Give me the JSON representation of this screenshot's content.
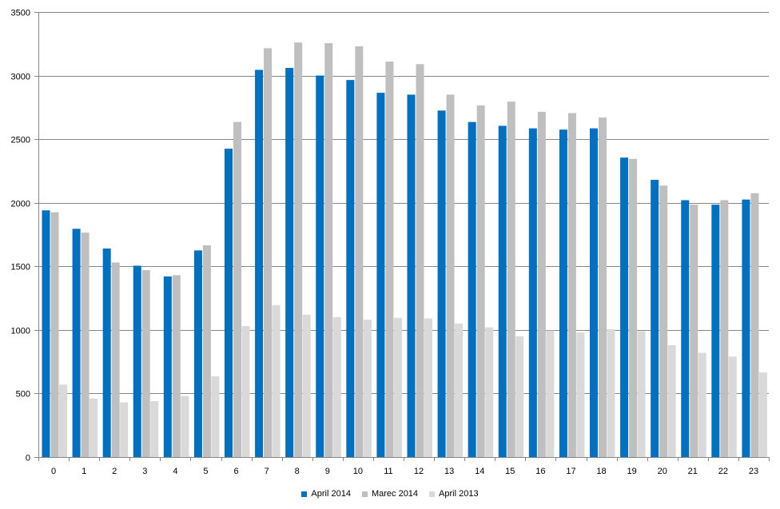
{
  "chart_data": {
    "type": "bar",
    "title": "",
    "xlabel": "",
    "ylabel": "",
    "ylim": [
      0,
      3500
    ],
    "yticks": [
      0,
      500,
      1000,
      1500,
      2000,
      2500,
      3000,
      3500
    ],
    "grid": true,
    "legend_position": "bottom",
    "categories": [
      "0",
      "1",
      "2",
      "3",
      "4",
      "5",
      "6",
      "7",
      "8",
      "9",
      "10",
      "11",
      "12",
      "13",
      "14",
      "15",
      "16",
      "17",
      "18",
      "19",
      "20",
      "21",
      "22",
      "23"
    ],
    "series": [
      {
        "name": "April 2014",
        "color": "#0070C0",
        "values": [
          1940,
          1795,
          1640,
          1505,
          1420,
          1625,
          2425,
          3045,
          3060,
          3000,
          2965,
          2865,
          2850,
          2725,
          2635,
          2605,
          2585,
          2575,
          2585,
          2355,
          2180,
          2020,
          1985,
          2025
        ]
      },
      {
        "name": "Marec 2014",
        "color": "#BFBFBF",
        "values": [
          1925,
          1765,
          1530,
          1470,
          1430,
          1665,
          2635,
          3215,
          3260,
          3255,
          3230,
          3110,
          3090,
          2850,
          2765,
          2795,
          2715,
          2705,
          2670,
          2345,
          2135,
          1985,
          2020,
          2075
        ]
      },
      {
        "name": "April 2013",
        "color": "#D9D9D9",
        "values": [
          570,
          460,
          430,
          440,
          480,
          635,
          1030,
          1195,
          1120,
          1100,
          1080,
          1095,
          1090,
          1050,
          1020,
          950,
          995,
          980,
          1005,
          990,
          880,
          820,
          790,
          665
        ]
      }
    ]
  }
}
